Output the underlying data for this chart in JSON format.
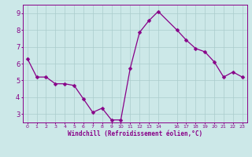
{
  "x": [
    0,
    1,
    2,
    3,
    4,
    5,
    6,
    7,
    8,
    9,
    10,
    11,
    12,
    13,
    14,
    16,
    17,
    18,
    19,
    20,
    21,
    22,
    23
  ],
  "y": [
    6.3,
    5.2,
    5.2,
    4.8,
    4.8,
    4.7,
    3.9,
    3.1,
    3.35,
    2.65,
    2.65,
    5.7,
    7.85,
    8.55,
    9.1,
    8.0,
    7.4,
    6.9,
    6.7,
    6.1,
    5.2,
    5.5,
    5.2
  ],
  "line_color": "#880088",
  "marker_color": "#880088",
  "bg_color": "#cce8e8",
  "grid_color": "#aacccc",
  "xlabel": "Windchill (Refroidissement éolien,°C)",
  "xlabel_color": "#880088",
  "tick_color": "#880088",
  "ylim": [
    2.5,
    9.5
  ],
  "xlim": [
    -0.5,
    23.5
  ],
  "yticks": [
    3,
    4,
    5,
    6,
    7,
    8,
    9
  ],
  "xticks": [
    0,
    1,
    2,
    3,
    4,
    5,
    6,
    7,
    8,
    9,
    10,
    11,
    12,
    13,
    14,
    16,
    17,
    18,
    19,
    20,
    21,
    22,
    23
  ],
  "xtick_labels": [
    "0",
    "1",
    "2",
    "3",
    "4",
    "5",
    "6",
    "7",
    "8",
    "9",
    "1011",
    "121314",
    "",
    "161718",
    "192021",
    "",
    "2223",
    "",
    "",
    "",
    "",
    "",
    ""
  ],
  "marker_size": 2.5,
  "line_width": 0.9
}
